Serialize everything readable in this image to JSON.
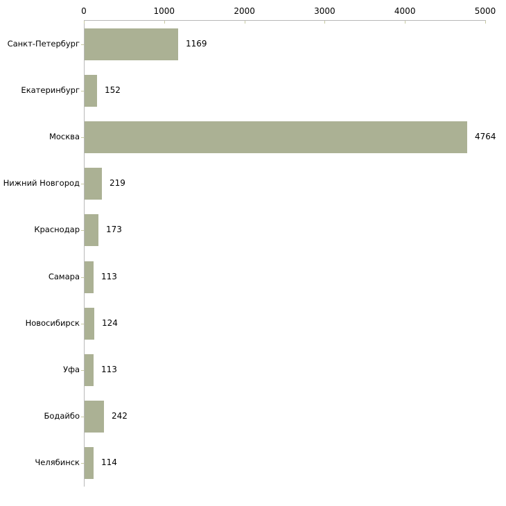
{
  "chart_data": {
    "type": "bar",
    "orientation": "horizontal",
    "title": "",
    "xlabel": "",
    "ylabel": "",
    "categories": [
      "Санкт-Петербург",
      "Екатеринбург",
      "Москва",
      "Нижний Новгород",
      "Краснодар",
      "Самара",
      "Новосибирск",
      "Уфа",
      "Бодайбо",
      "Челябинск"
    ],
    "values": [
      1169,
      152,
      4764,
      219,
      173,
      113,
      124,
      113,
      242,
      114
    ],
    "value_labels": [
      "1169",
      "152",
      "4764",
      "219",
      "173",
      "113",
      "124",
      "113",
      "242",
      "114"
    ],
    "xlim": [
      0,
      5000
    ],
    "x_ticks": [
      0,
      1000,
      2000,
      3000,
      4000,
      5000
    ],
    "x_tick_labels": [
      "0",
      "1000",
      "2000",
      "3000",
      "4000",
      "5000"
    ],
    "x_axis_position": "top",
    "grid": false,
    "legend": false,
    "colors": {
      "bar_fill": "#abb194",
      "axis_line": "#b8b8b8",
      "tick_mark": "#c6c89f",
      "background": "#ffffff",
      "text": "#000000"
    }
  }
}
